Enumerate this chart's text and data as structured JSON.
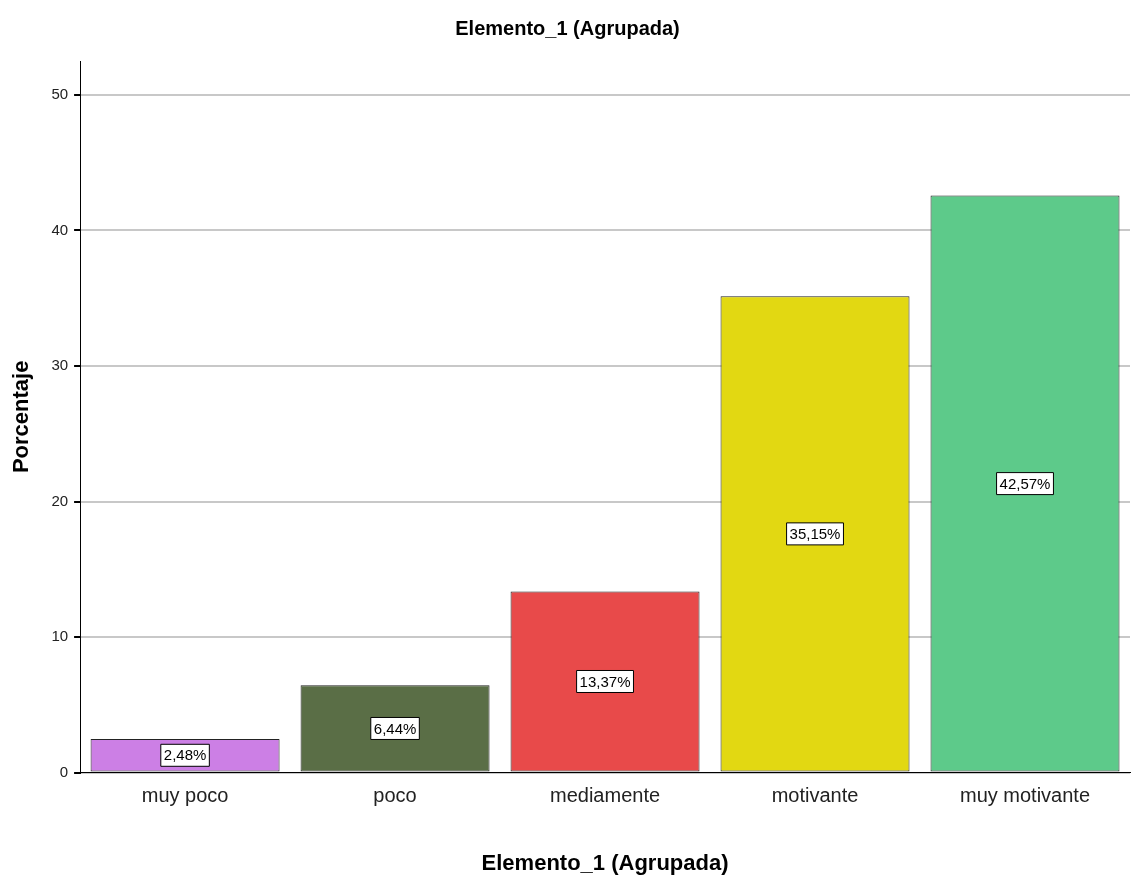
{
  "chart_data": {
    "type": "bar",
    "title": "Elemento_1 (Agrupada)",
    "xlabel": "Elemento_1 (Agrupada)",
    "ylabel": "Porcentaje",
    "categories": [
      "muy poco",
      "poco",
      "mediamente",
      "motivante",
      "muy motivante"
    ],
    "values": [
      2.48,
      6.44,
      13.37,
      35.15,
      42.57
    ],
    "colors": [
      "#cc7fe5",
      "#5a6e46",
      "#e84a4a",
      "#e2d812",
      "#5dca8a"
    ],
    "value_labels": [
      "2,48%",
      "6,44%",
      "13,37%",
      "35,15%",
      "42,57%"
    ],
    "ylim": [
      0,
      52.5
    ],
    "yticks": [
      0,
      10,
      20,
      30,
      40,
      50
    ],
    "grid": "y",
    "legend": false
  }
}
